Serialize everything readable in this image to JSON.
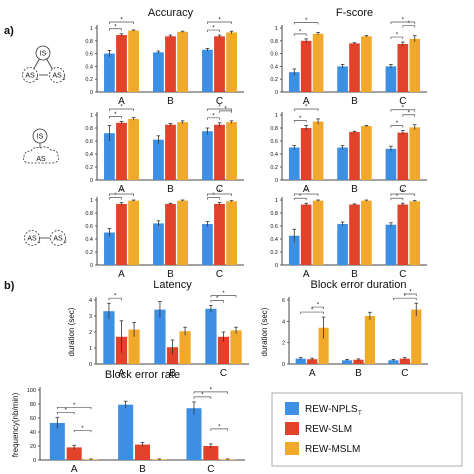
{
  "figure": {
    "panel_labels": [
      "a)",
      "b)"
    ],
    "colors": {
      "nplst": "#3d8fe3",
      "slm": "#e2412a",
      "mslm": "#f0a92b",
      "axis": "#444444",
      "err": "#333333",
      "sig": "#555555"
    },
    "legend": {
      "items": [
        {
          "label": "REW-NPLS",
          "subscript": "T",
          "color": "#3d8fe3"
        },
        {
          "label": "REW-SLM",
          "subscript": "",
          "color": "#e2412a"
        },
        {
          "label": "REW-MSLM",
          "subscript": "",
          "color": "#f0a92b"
        }
      ]
    },
    "diagrams": [
      {
        "type": "triangle",
        "labels": [
          "IS",
          "AS",
          "AS"
        ],
        "subscripts": [
          "",
          "1",
          "2"
        ]
      },
      {
        "type": "cloud",
        "labels": [
          "IS",
          "AS"
        ],
        "subscripts": [
          "",
          ""
        ]
      },
      {
        "type": "pair",
        "labels": [
          "AS",
          "AS"
        ],
        "subscripts": [
          "1",
          "2"
        ]
      }
    ]
  },
  "chart_data": [
    {
      "type": "bar",
      "title": "Accuracy",
      "categories": [
        "A",
        "B",
        "C"
      ],
      "ylim": [
        0,
        1
      ],
      "yticks": [
        "0",
        "0.2",
        "0.4",
        "0.6",
        "0.8",
        "1"
      ],
      "series": [
        {
          "values": [
            0.6,
            0.62,
            0.66
          ]
        },
        {
          "values": [
            0.89,
            0.87,
            0.87
          ]
        },
        {
          "values": [
            0.96,
            0.94,
            0.93
          ]
        }
      ],
      "errors": [
        [
          0.05,
          0.02,
          0.02
        ],
        [
          0.02,
          0.02,
          0.02
        ],
        [
          0.01,
          0.01,
          0.02
        ]
      ]
    },
    {
      "type": "bar",
      "title": "F-score",
      "categories": [
        "A",
        "B",
        "C"
      ],
      "ylim": [
        0,
        1
      ],
      "yticks": [
        "0",
        "0.2",
        "0.4",
        "0.6",
        "0.8",
        "1"
      ],
      "series": [
        {
          "values": [
            0.31,
            0.4,
            0.4
          ]
        },
        {
          "values": [
            0.8,
            0.76,
            0.75
          ]
        },
        {
          "values": [
            0.91,
            0.87,
            0.83
          ]
        }
      ],
      "errors": [
        [
          0.05,
          0.03,
          0.03
        ],
        [
          0.03,
          0.01,
          0.03
        ],
        [
          0.02,
          0.01,
          0.05
        ]
      ]
    },
    {
      "type": "bar",
      "title": "",
      "categories": [
        "A",
        "B",
        "C"
      ],
      "ylim": [
        0,
        1
      ],
      "yticks": [
        "0",
        "0.2",
        "0.4",
        "0.6",
        "0.8",
        "1"
      ],
      "series": [
        {
          "values": [
            0.72,
            0.62,
            0.75
          ]
        },
        {
          "values": [
            0.88,
            0.85,
            0.85
          ]
        },
        {
          "values": [
            0.94,
            0.89,
            0.89
          ]
        }
      ],
      "errors": [
        [
          0.12,
          0.06,
          0.05
        ],
        [
          0.02,
          0.02,
          0.03
        ],
        [
          0.02,
          0.02,
          0.02
        ]
      ]
    },
    {
      "type": "bar",
      "title": "",
      "categories": [
        "A",
        "B",
        "C"
      ],
      "ylim": [
        0,
        1
      ],
      "yticks": [
        "0",
        "0.2",
        "0.4",
        "0.6",
        "0.8",
        "1"
      ],
      "series": [
        {
          "values": [
            0.5,
            0.5,
            0.48
          ]
        },
        {
          "values": [
            0.8,
            0.74,
            0.73
          ]
        },
        {
          "values": [
            0.9,
            0.83,
            0.81
          ]
        }
      ],
      "errors": [
        [
          0.03,
          0.03,
          0.04
        ],
        [
          0.04,
          0.01,
          0.03
        ],
        [
          0.04,
          0.01,
          0.04
        ]
      ]
    },
    {
      "type": "bar",
      "title": "",
      "categories": [
        "A",
        "B",
        "C"
      ],
      "ylim": [
        0,
        1
      ],
      "yticks": [
        "0",
        "0.2",
        "0.4",
        "0.6",
        "0.8",
        "1"
      ],
      "series": [
        {
          "values": [
            0.5,
            0.64,
            0.63
          ]
        },
        {
          "values": [
            0.94,
            0.94,
            0.94
          ]
        },
        {
          "values": [
            0.99,
            0.99,
            0.98
          ]
        }
      ],
      "errors": [
        [
          0.06,
          0.04,
          0.04
        ],
        [
          0.02,
          0.01,
          0.02
        ],
        [
          0.01,
          0.01,
          0.01
        ]
      ]
    },
    {
      "type": "bar",
      "title": "",
      "categories": [
        "A",
        "B",
        "C"
      ],
      "ylim": [
        0,
        1
      ],
      "yticks": [
        "0",
        "0.2",
        "0.4",
        "0.6",
        "0.8",
        "1"
      ],
      "series": [
        {
          "values": [
            0.45,
            0.63,
            0.62
          ]
        },
        {
          "values": [
            0.93,
            0.93,
            0.93
          ]
        },
        {
          "values": [
            0.99,
            0.99,
            0.98
          ]
        }
      ],
      "errors": [
        [
          0.1,
          0.03,
          0.03
        ],
        [
          0.02,
          0.01,
          0.02
        ],
        [
          0.01,
          0.01,
          0.01
        ]
      ]
    },
    {
      "type": "bar",
      "title": "Latency",
      "ylabel": "duration (sec)",
      "categories": [
        "A",
        "B",
        "C"
      ],
      "ylim": [
        0,
        4
      ],
      "yticks": [
        "0",
        "1",
        "2",
        "3",
        "4"
      ],
      "series": [
        {
          "values": [
            3.3,
            3.4,
            3.45
          ]
        },
        {
          "values": [
            1.7,
            1.05,
            1.7
          ]
        },
        {
          "values": [
            2.15,
            2.05,
            2.1
          ]
        }
      ],
      "errors": [
        [
          0.5,
          0.5,
          0.2
        ],
        [
          1.0,
          0.45,
          0.3
        ],
        [
          0.45,
          0.25,
          0.2
        ]
      ]
    },
    {
      "type": "bar",
      "title": "Block error duration",
      "ylabel": "duration (sec)",
      "categories": [
        "A",
        "B",
        "C"
      ],
      "ylim": [
        0,
        6
      ],
      "yticks": [
        "0",
        "2",
        "4",
        "6"
      ],
      "series": [
        {
          "values": [
            0.5,
            0.35,
            0.35
          ]
        },
        {
          "values": [
            0.45,
            0.4,
            0.5
          ]
        },
        {
          "values": [
            3.4,
            4.5,
            5.1
          ]
        }
      ],
      "errors": [
        [
          0.1,
          0.08,
          0.08
        ],
        [
          0.1,
          0.08,
          0.1
        ],
        [
          1.0,
          0.35,
          0.6
        ]
      ]
    },
    {
      "type": "bar",
      "title": "Block error rate",
      "ylabel": "frequency(nb/min)",
      "categories": [
        "A",
        "B",
        "C"
      ],
      "ylim": [
        0,
        100
      ],
      "yticks": [
        "0",
        "20",
        "40",
        "60",
        "80",
        "100"
      ],
      "series": [
        {
          "values": [
            53,
            79,
            74
          ]
        },
        {
          "values": [
            18,
            22,
            20
          ]
        },
        {
          "values": [
            1,
            1,
            1
          ]
        }
      ],
      "errors": [
        [
          8,
          5,
          9
        ],
        [
          3,
          3,
          3
        ],
        [
          0.5,
          0.5,
          0.5
        ]
      ]
    }
  ]
}
